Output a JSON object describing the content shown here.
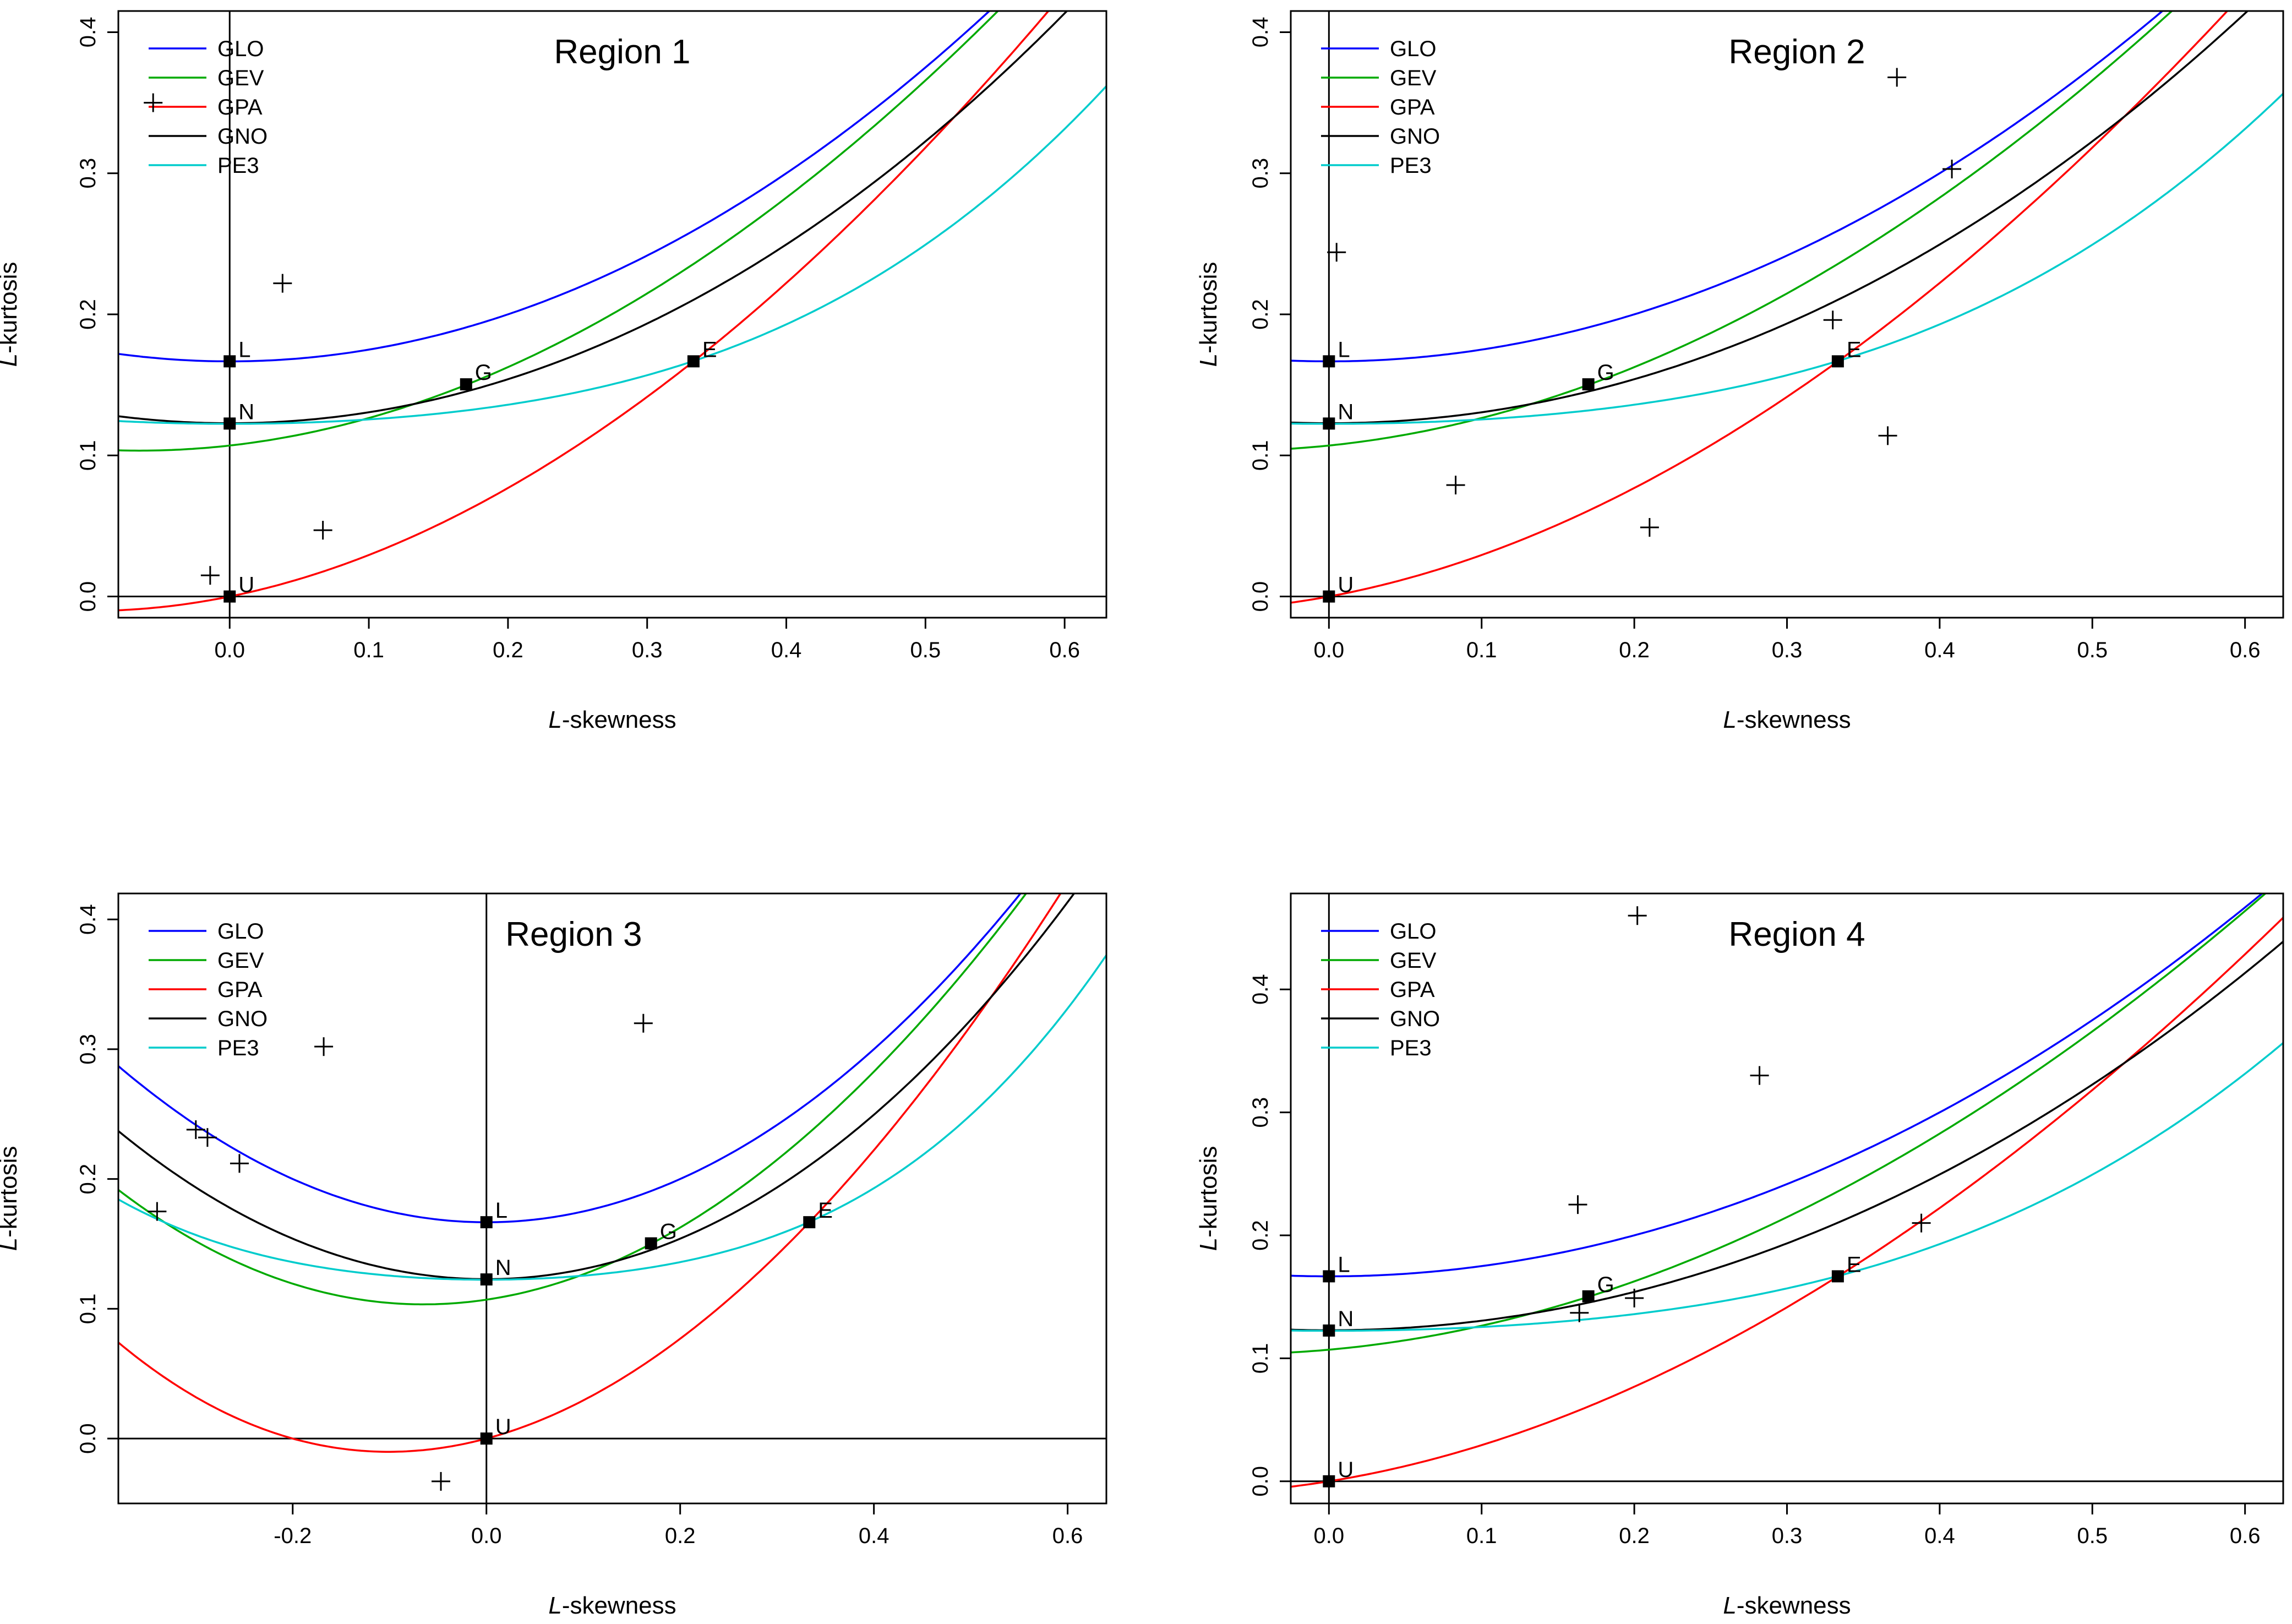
{
  "figure": {
    "aria_label": "L-moment ratio diagrams for four regions"
  },
  "chart_data": [
    {
      "type": "scatter",
      "title": "Region 1",
      "xlabel": {
        "italic": "L",
        "rest": "-skewness"
      },
      "ylabel": {
        "italic": "L",
        "rest": "-kurtosis"
      },
      "xlim": [
        -0.08,
        0.63
      ],
      "ylim": [
        -0.015,
        0.415
      ],
      "xticks": [
        0.0,
        0.1,
        0.2,
        0.3,
        0.4,
        0.5,
        0.6
      ],
      "xtick_labels": [
        "0.0",
        "0.1",
        "0.2",
        "0.3",
        "0.4",
        "0.5",
        "0.6"
      ],
      "yticks": [
        0.0,
        0.1,
        0.2,
        0.3,
        0.4
      ],
      "ytick_labels": [
        "0.0",
        "0.1",
        "0.2",
        "0.3",
        "0.4"
      ],
      "legend": [
        {
          "name": "GLO",
          "color": "#0000ff"
        },
        {
          "name": "GEV",
          "color": "#00aa00"
        },
        {
          "name": "GPA",
          "color": "#ff0000"
        },
        {
          "name": "GNO",
          "color": "#000000"
        },
        {
          "name": "PE3",
          "color": "#00cccc"
        }
      ],
      "special_points": [
        {
          "label": "L",
          "x": 0.0,
          "y": 0.1667
        },
        {
          "label": "N",
          "x": 0.0,
          "y": 0.1226
        },
        {
          "label": "G",
          "x": 0.1699,
          "y": 0.1504
        },
        {
          "label": "E",
          "x": 0.3333,
          "y": 0.1667
        },
        {
          "label": "U",
          "x": 0.0,
          "y": 0.0
        }
      ],
      "sites": [
        {
          "x": -0.055,
          "y": 0.35
        },
        {
          "x": 0.038,
          "y": 0.222
        },
        {
          "x": 0.067,
          "y": 0.047
        },
        {
          "x": -0.014,
          "y": 0.015
        }
      ]
    },
    {
      "type": "scatter",
      "title": "Region 2",
      "xlabel": {
        "italic": "L",
        "rest": "-skewness"
      },
      "ylabel": {
        "italic": "L",
        "rest": "-kurtosis"
      },
      "xlim": [
        -0.025,
        0.625
      ],
      "ylim": [
        -0.015,
        0.415
      ],
      "xticks": [
        0.0,
        0.1,
        0.2,
        0.3,
        0.4,
        0.5,
        0.6
      ],
      "xtick_labels": [
        "0.0",
        "0.1",
        "0.2",
        "0.3",
        "0.4",
        "0.5",
        "0.6"
      ],
      "yticks": [
        0.0,
        0.1,
        0.2,
        0.3,
        0.4
      ],
      "ytick_labels": [
        "0.0",
        "0.1",
        "0.2",
        "0.3",
        "0.4"
      ],
      "legend": [
        {
          "name": "GLO",
          "color": "#0000ff"
        },
        {
          "name": "GEV",
          "color": "#00aa00"
        },
        {
          "name": "GPA",
          "color": "#ff0000"
        },
        {
          "name": "GNO",
          "color": "#000000"
        },
        {
          "name": "PE3",
          "color": "#00cccc"
        }
      ],
      "special_points": [
        {
          "label": "L",
          "x": 0.0,
          "y": 0.1667
        },
        {
          "label": "N",
          "x": 0.0,
          "y": 0.1226
        },
        {
          "label": "G",
          "x": 0.1699,
          "y": 0.1504
        },
        {
          "label": "E",
          "x": 0.3333,
          "y": 0.1667
        },
        {
          "label": "U",
          "x": 0.0,
          "y": 0.0
        }
      ],
      "sites": [
        {
          "x": 0.005,
          "y": 0.244
        },
        {
          "x": 0.083,
          "y": 0.079
        },
        {
          "x": 0.21,
          "y": 0.049
        },
        {
          "x": 0.33,
          "y": 0.196
        },
        {
          "x": 0.366,
          "y": 0.114
        },
        {
          "x": 0.372,
          "y": 0.368
        },
        {
          "x": 0.408,
          "y": 0.303
        }
      ]
    },
    {
      "type": "scatter",
      "title": "Region 3",
      "xlabel": {
        "italic": "L",
        "rest": "-skewness"
      },
      "ylabel": {
        "italic": "L",
        "rest": "-kurtosis"
      },
      "xlim": [
        -0.38,
        0.64
      ],
      "ylim": [
        -0.05,
        0.42
      ],
      "xticks": [
        -0.2,
        0.0,
        0.2,
        0.4,
        0.6
      ],
      "xtick_labels": [
        "-0.2",
        "0.0",
        "0.2",
        "0.4",
        "0.6"
      ],
      "yticks": [
        0.0,
        0.1,
        0.2,
        0.3,
        0.4
      ],
      "ytick_labels": [
        "0.0",
        "0.1",
        "0.2",
        "0.3",
        "0.4"
      ],
      "legend": [
        {
          "name": "GLO",
          "color": "#0000ff"
        },
        {
          "name": "GEV",
          "color": "#00aa00"
        },
        {
          "name": "GPA",
          "color": "#ff0000"
        },
        {
          "name": "GNO",
          "color": "#000000"
        },
        {
          "name": "PE3",
          "color": "#00cccc"
        }
      ],
      "special_points": [
        {
          "label": "L",
          "x": 0.0,
          "y": 0.1667
        },
        {
          "label": "N",
          "x": 0.0,
          "y": 0.1226
        },
        {
          "label": "G",
          "x": 0.1699,
          "y": 0.1504
        },
        {
          "label": "E",
          "x": 0.3333,
          "y": 0.1667
        },
        {
          "label": "U",
          "x": 0.0,
          "y": 0.0
        }
      ],
      "sites": [
        {
          "x": -0.34,
          "y": 0.175
        },
        {
          "x": -0.3,
          "y": 0.238
        },
        {
          "x": -0.288,
          "y": 0.232
        },
        {
          "x": -0.255,
          "y": 0.212
        },
        {
          "x": -0.168,
          "y": 0.302
        },
        {
          "x": 0.162,
          "y": 0.32
        },
        {
          "x": -0.047,
          "y": -0.033
        }
      ]
    },
    {
      "type": "scatter",
      "title": "Region 4",
      "xlabel": {
        "italic": "L",
        "rest": "-skewness"
      },
      "ylabel": {
        "italic": "L",
        "rest": "-kurtosis"
      },
      "xlim": [
        -0.025,
        0.625
      ],
      "ylim": [
        -0.018,
        0.478
      ],
      "xticks": [
        0.0,
        0.1,
        0.2,
        0.3,
        0.4,
        0.5,
        0.6
      ],
      "xtick_labels": [
        "0.0",
        "0.1",
        "0.2",
        "0.3",
        "0.4",
        "0.5",
        "0.6"
      ],
      "yticks": [
        0.0,
        0.1,
        0.2,
        0.3,
        0.4
      ],
      "ytick_labels": [
        "0.0",
        "0.1",
        "0.2",
        "0.3",
        "0.4"
      ],
      "legend": [
        {
          "name": "GLO",
          "color": "#0000ff"
        },
        {
          "name": "GEV",
          "color": "#00aa00"
        },
        {
          "name": "GPA",
          "color": "#ff0000"
        },
        {
          "name": "GNO",
          "color": "#000000"
        },
        {
          "name": "PE3",
          "color": "#00cccc"
        }
      ],
      "special_points": [
        {
          "label": "L",
          "x": 0.0,
          "y": 0.1667
        },
        {
          "label": "N",
          "x": 0.0,
          "y": 0.1226
        },
        {
          "label": "G",
          "x": 0.1699,
          "y": 0.1504
        },
        {
          "label": "E",
          "x": 0.3333,
          "y": 0.1667
        },
        {
          "label": "U",
          "x": 0.0,
          "y": 0.0
        }
      ],
      "sites": [
        {
          "x": 0.164,
          "y": 0.137
        },
        {
          "x": 0.2,
          "y": 0.149
        },
        {
          "x": 0.163,
          "y": 0.225
        },
        {
          "x": 0.202,
          "y": 0.46
        },
        {
          "x": 0.282,
          "y": 0.33
        },
        {
          "x": 0.388,
          "y": 0.21
        }
      ]
    }
  ]
}
